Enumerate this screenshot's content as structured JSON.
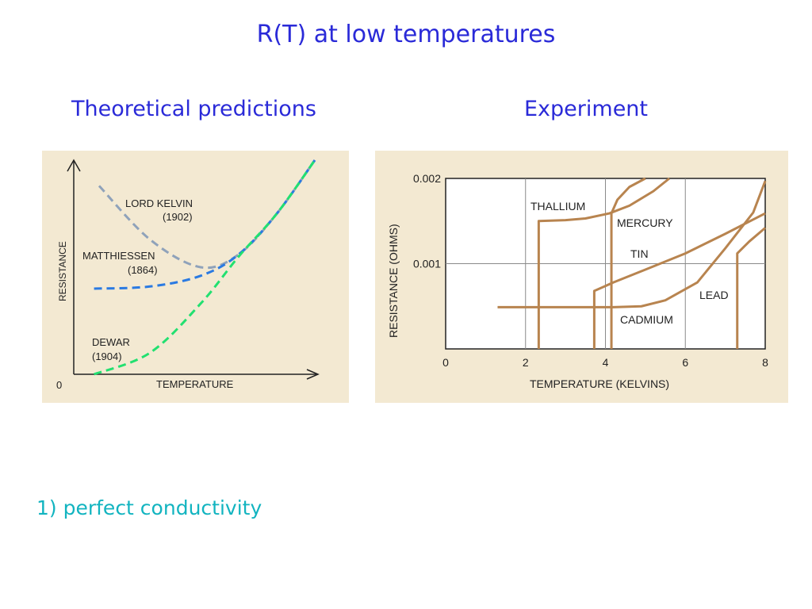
{
  "slide": {
    "title": "R(T) at low temperatures",
    "left_heading": "Theoretical predictions",
    "right_heading": "Experiment",
    "bullet": "1) perfect conductivity"
  },
  "chart_data": [
    {
      "type": "line",
      "title": "",
      "xlabel": "TEMPERATURE",
      "ylabel": "RESISTANCE",
      "origin_label": "0",
      "x_unit": "arbitrary (no scale)",
      "xlim": [
        0,
        1
      ],
      "ylim": [
        0,
        1
      ],
      "grid": false,
      "legend": "inline labels",
      "colors": {
        "background": "#f3e9d2",
        "axis": "#222222",
        "text": "#222222"
      },
      "series": [
        {
          "name": "LORD KELVIN",
          "year": "(1902)",
          "color": "#8fa2ba",
          "style": "dashed",
          "points": [
            [
              0.1,
              0.88
            ],
            [
              0.3,
              0.63
            ],
            [
              0.5,
              0.5
            ],
            [
              0.65,
              0.56
            ],
            [
              0.8,
              0.75
            ],
            [
              0.95,
              1.0
            ]
          ]
        },
        {
          "name": "MATTHIESSEN",
          "year": "(1864)",
          "color": "#2a7ae2",
          "style": "dashed",
          "points": [
            [
              0.08,
              0.4
            ],
            [
              0.3,
              0.41
            ],
            [
              0.5,
              0.46
            ],
            [
              0.65,
              0.56
            ],
            [
              0.8,
              0.75
            ],
            [
              0.95,
              1.0
            ]
          ]
        },
        {
          "name": "DEWAR",
          "year": "(1904)",
          "color": "#22e070",
          "style": "dashed",
          "points": [
            [
              0.08,
              0.0
            ],
            [
              0.3,
              0.1
            ],
            [
              0.5,
              0.33
            ],
            [
              0.65,
              0.55
            ],
            [
              0.8,
              0.75
            ],
            [
              0.95,
              1.0
            ]
          ]
        }
      ]
    },
    {
      "type": "line",
      "title": "",
      "xlabel": "TEMPERATURE (KELVINS)",
      "ylabel": "RESISTANCE (OHMS)",
      "xlim": [
        0,
        8
      ],
      "ylim": [
        0,
        0.002
      ],
      "x_ticks": [
        0,
        2,
        4,
        6,
        8
      ],
      "y_ticks": [
        "0.002",
        "0.001"
      ],
      "grid": true,
      "legend": "inline labels",
      "colors": {
        "background": "#f3e9d2",
        "grid": "#8a8a8a",
        "line": "#b8844f",
        "text": "#222222"
      },
      "series": [
        {
          "name": "THALLIUM",
          "points": [
            [
              2.33,
              0.0
            ],
            [
              2.33,
              0.0015
            ],
            [
              3.0,
              0.00151
            ],
            [
              3.5,
              0.00153
            ],
            [
              4.1,
              0.00159
            ],
            [
              4.6,
              0.00168
            ],
            [
              5.2,
              0.00185
            ],
            [
              5.6,
              0.002
            ]
          ]
        },
        {
          "name": "MERCURY",
          "points": [
            [
              4.15,
              0.0
            ],
            [
              4.15,
              0.00159
            ],
            [
              4.3,
              0.00175
            ],
            [
              4.6,
              0.0019
            ],
            [
              5.0,
              0.002
            ]
          ]
        },
        {
          "name": "TIN",
          "points": [
            [
              3.72,
              0.0
            ],
            [
              3.72,
              0.00068
            ],
            [
              4.2,
              0.00078
            ],
            [
              5.0,
              0.00093
            ],
            [
              6.0,
              0.00112
            ],
            [
              7.0,
              0.00135
            ],
            [
              8.0,
              0.00159
            ]
          ]
        },
        {
          "name": "CADMIUM",
          "points": [
            [
              1.3,
              0.00049
            ],
            [
              4.2,
              0.00049
            ],
            [
              4.9,
              0.0005
            ],
            [
              5.5,
              0.00057
            ],
            [
              6.3,
              0.00078
            ],
            [
              7.0,
              0.00118
            ],
            [
              7.7,
              0.0016
            ],
            [
              8.0,
              0.00197
            ]
          ]
        },
        {
          "name": "LEAD",
          "points": [
            [
              7.3,
              0.0
            ],
            [
              7.3,
              0.00112
            ],
            [
              7.6,
              0.00126
            ],
            [
              8.0,
              0.00142
            ]
          ]
        }
      ],
      "series_labels": [
        "THALLIUM",
        "MERCURY",
        "TIN",
        "LEAD",
        "CADMIUM"
      ]
    }
  ]
}
